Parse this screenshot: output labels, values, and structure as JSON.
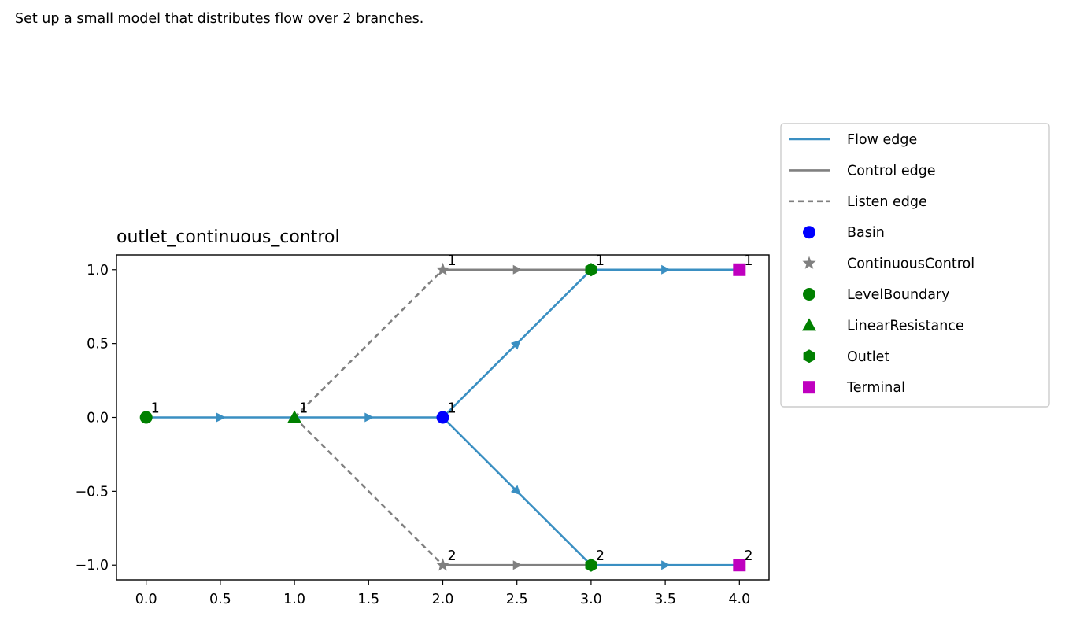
{
  "page": {
    "description": "Set up a small model that distributes flow over 2 branches."
  },
  "colors": {
    "flow_edge": "#3a8fc2",
    "control_edge": "#808080",
    "listen_edge": "#808080",
    "basin": "#0000ff",
    "continuous_control": "#808080",
    "level_boundary": "#008000",
    "linear_resistance": "#008000",
    "outlet": "#008000",
    "terminal": "#bf00bf"
  },
  "chart_data": {
    "type": "network",
    "title": "outlet_continuous_control",
    "xlim": [
      -0.2,
      4.2
    ],
    "ylim": [
      -1.1,
      1.1
    ],
    "x_ticks": [
      0.0,
      0.5,
      1.0,
      1.5,
      2.0,
      2.5,
      3.0,
      3.5,
      4.0
    ],
    "x_tick_labels": [
      "0.0",
      "0.5",
      "1.0",
      "1.5",
      "2.0",
      "2.5",
      "3.0",
      "3.5",
      "4.0"
    ],
    "y_ticks": [
      1.0,
      0.5,
      0.0,
      -0.5,
      -1.0
    ],
    "y_tick_labels": [
      "1.0",
      "0.5",
      "0.0",
      "−0.5",
      "−1.0"
    ],
    "grid": false,
    "legend_position": "outside-right",
    "legend": [
      {
        "label": "Flow edge",
        "kind": "line",
        "style": "flow_edge"
      },
      {
        "label": "Control edge",
        "kind": "line",
        "style": "control_edge"
      },
      {
        "label": "Listen edge",
        "kind": "dashed",
        "style": "listen_edge"
      },
      {
        "label": "Basin",
        "kind": "marker",
        "style": "basin"
      },
      {
        "label": "ContinuousControl",
        "kind": "marker",
        "style": "continuous_control"
      },
      {
        "label": "LevelBoundary",
        "kind": "marker",
        "style": "level_boundary"
      },
      {
        "label": "LinearResistance",
        "kind": "marker",
        "style": "linear_resistance"
      },
      {
        "label": "Outlet",
        "kind": "marker",
        "style": "outlet"
      },
      {
        "label": "Terminal",
        "kind": "marker",
        "style": "terminal"
      }
    ],
    "nodes": [
      {
        "type": "level_boundary",
        "id": "1",
        "x": 0.0,
        "y": 0.0
      },
      {
        "type": "linear_resistance",
        "id": "1",
        "x": 1.0,
        "y": 0.0
      },
      {
        "type": "basin",
        "id": "1",
        "x": 2.0,
        "y": 0.0
      },
      {
        "type": "continuous_control",
        "id": "1",
        "x": 2.0,
        "y": 1.0
      },
      {
        "type": "continuous_control",
        "id": "2",
        "x": 2.0,
        "y": -1.0
      },
      {
        "type": "outlet",
        "id": "1",
        "x": 3.0,
        "y": 1.0
      },
      {
        "type": "outlet",
        "id": "2",
        "x": 3.0,
        "y": -1.0
      },
      {
        "type": "terminal",
        "id": "1",
        "x": 4.0,
        "y": 1.0
      },
      {
        "type": "terminal",
        "id": "2",
        "x": 4.0,
        "y": -1.0
      }
    ],
    "edges": [
      {
        "kind": "flow_edge",
        "from": [
          0,
          0
        ],
        "to": [
          1,
          0
        ]
      },
      {
        "kind": "flow_edge",
        "from": [
          1,
          0
        ],
        "to": [
          2,
          0
        ]
      },
      {
        "kind": "flow_edge",
        "from": [
          2,
          0
        ],
        "to": [
          3,
          1
        ]
      },
      {
        "kind": "flow_edge",
        "from": [
          2,
          0
        ],
        "to": [
          3,
          -1
        ]
      },
      {
        "kind": "flow_edge",
        "from": [
          3,
          1
        ],
        "to": [
          4,
          1
        ]
      },
      {
        "kind": "flow_edge",
        "from": [
          3,
          -1
        ],
        "to": [
          4,
          -1
        ]
      },
      {
        "kind": "control_edge",
        "from": [
          2,
          1
        ],
        "to": [
          3,
          1
        ]
      },
      {
        "kind": "control_edge",
        "from": [
          2,
          -1
        ],
        "to": [
          3,
          -1
        ]
      },
      {
        "kind": "listen_edge",
        "from": [
          1,
          0
        ],
        "to": [
          2,
          1
        ]
      },
      {
        "kind": "listen_edge",
        "from": [
          1,
          0
        ],
        "to": [
          2,
          -1
        ]
      }
    ]
  }
}
